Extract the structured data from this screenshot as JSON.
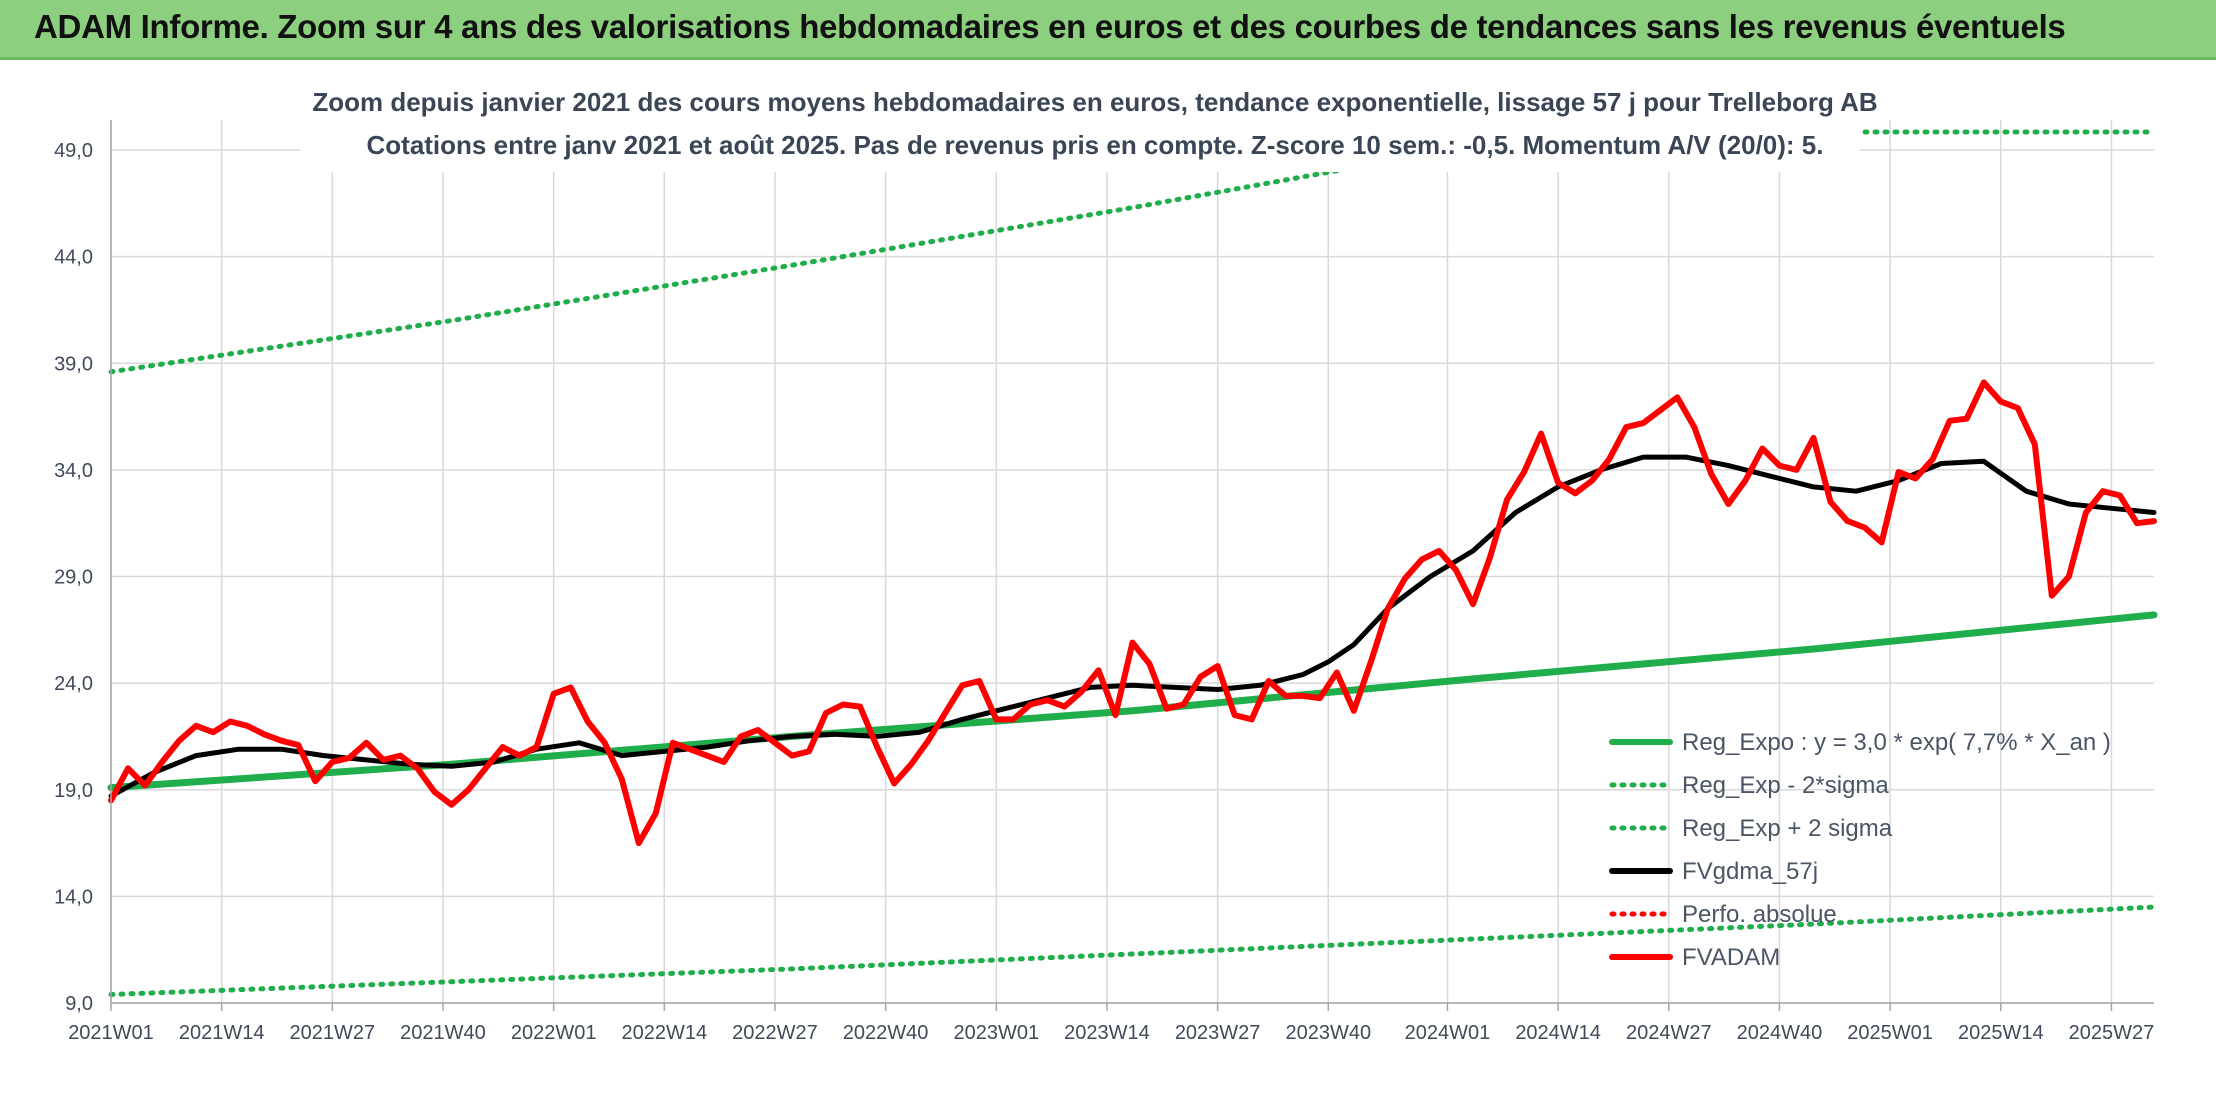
{
  "banner": {
    "title": "ADAM Informe. Zoom sur 4 ans des valorisations hebdomadaires en euros et des courbes de tendances sans les revenus éventuels"
  },
  "colors": {
    "banner_bg": "#8ccf7e",
    "reg_expo": "#1fae4b",
    "sigma_bands": "#1fae4b",
    "fvgdma": "#000000",
    "perfo": "#ff0000",
    "fvadam": "#ff0000",
    "grid": "#d9d9d9",
    "axis_text": "#404a5a"
  },
  "chart_data": {
    "type": "line",
    "title": "Zoom depuis janvier 2021 des cours moyens hebdomadaires en euros, tendance exponentielle, lissage 57 j pour Trelleborg AB",
    "subtitle": "Cotations entre janv 2021 et août 2025. Pas de revenus pris en compte. Z-score 10 sem.: -0,5. Momentum A/V (20/0): 5.",
    "xlabel": "",
    "ylabel": "",
    "ylim": [
      9,
      49
    ],
    "yticks": [
      "9,0",
      "14,0",
      "19,0",
      "24,0",
      "29,0",
      "34,0",
      "39,0",
      "44,0",
      "49,0"
    ],
    "ytick_values": [
      9,
      14,
      19,
      24,
      29,
      34,
      39,
      44,
      49
    ],
    "x_range": [
      0,
      240
    ],
    "xticks": [
      "2021W01",
      "2021W14",
      "2021W27",
      "2021W40",
      "2022W01",
      "2022W14",
      "2022W27",
      "2022W40",
      "2023W01",
      "2023W14",
      "2023W27",
      "2023W40",
      "2024W01",
      "2024W14",
      "2024W27",
      "2024W40",
      "2025W01",
      "2025W14",
      "2025W27"
    ],
    "xtick_positions": [
      0,
      13,
      26,
      39,
      52,
      65,
      78,
      91,
      104,
      117,
      130,
      143,
      157,
      170,
      183,
      196,
      209,
      222,
      235
    ],
    "grid": true,
    "legend_position": "bottom-right",
    "legend": [
      {
        "label": "Reg_Expo : y = 3,0 * exp( 7,7% *  X_an )",
        "style": "solid",
        "color": "#1fae4b"
      },
      {
        "label": "Reg_Exp - 2*sigma",
        "style": "dotted",
        "color": "#1fae4b"
      },
      {
        "label": "Reg_Exp + 2 sigma",
        "style": "dotted",
        "color": "#1fae4b"
      },
      {
        "label": "FVgdma_57j",
        "style": "solid",
        "color": "#000000"
      },
      {
        "label": "Perfo. absolue",
        "style": "dotted",
        "color": "#ff0000"
      },
      {
        "label": "FVADAM",
        "style": "solid",
        "color": "#ff0000"
      }
    ],
    "series": [
      {
        "name": "Reg_Expo : y = 3,0 * exp( 7,7% *  X_an )",
        "x": [
          0,
          40,
          80,
          120,
          160,
          200,
          240
        ],
        "values": [
          19.1,
          20.2,
          21.5,
          22.7,
          24.2,
          25.6,
          27.2
        ]
      },
      {
        "name": "Reg_Exp - 2*sigma",
        "x": [
          0,
          40,
          80,
          120,
          160,
          200,
          240
        ],
        "values": [
          9.4,
          10.0,
          10.6,
          11.3,
          12.0,
          12.7,
          13.5
        ]
      },
      {
        "name": "Reg_Exp + 2 sigma",
        "x": [
          0,
          40,
          80,
          120,
          145
        ],
        "values": [
          38.6,
          41.0,
          43.6,
          46.3,
          48.1
        ]
      },
      {
        "name": "FVgdma_57j",
        "x": [
          0,
          5,
          10,
          15,
          20,
          25,
          30,
          35,
          40,
          45,
          50,
          55,
          60,
          65,
          70,
          75,
          80,
          85,
          90,
          95,
          100,
          105,
          110,
          115,
          120,
          125,
          130,
          135,
          140,
          143,
          146,
          150,
          155,
          160,
          165,
          170,
          175,
          180,
          185,
          190,
          195,
          200,
          205,
          210,
          215,
          220,
          225,
          230,
          235,
          240
        ],
        "values": [
          18.7,
          19.8,
          20.6,
          20.9,
          20.9,
          20.6,
          20.4,
          20.2,
          20.1,
          20.3,
          20.9,
          21.2,
          20.6,
          20.8,
          21.0,
          21.3,
          21.5,
          21.6,
          21.5,
          21.7,
          22.3,
          22.8,
          23.3,
          23.8,
          23.9,
          23.8,
          23.7,
          23.9,
          24.4,
          25.0,
          25.8,
          27.5,
          29.0,
          30.2,
          32.0,
          33.2,
          34.0,
          34.6,
          34.6,
          34.2,
          33.7,
          33.2,
          33.0,
          33.5,
          34.3,
          34.4,
          33.0,
          32.4,
          32.2,
          32.0
        ]
      },
      {
        "name": "FVADAM",
        "x": [
          0,
          2,
          4,
          6,
          8,
          10,
          12,
          14,
          16,
          18,
          20,
          22,
          24,
          26,
          28,
          30,
          32,
          34,
          36,
          38,
          40,
          42,
          44,
          46,
          48,
          50,
          52,
          54,
          56,
          58,
          60,
          62,
          64,
          66,
          68,
          70,
          72,
          74,
          76,
          78,
          80,
          82,
          84,
          86,
          88,
          90,
          92,
          94,
          96,
          98,
          100,
          102,
          104,
          106,
          108,
          110,
          112,
          114,
          116,
          118,
          120,
          122,
          124,
          126,
          128,
          130,
          132,
          134,
          136,
          138,
          140,
          142,
          144,
          146,
          148,
          150,
          152,
          154,
          156,
          158,
          160,
          162,
          164,
          166,
          168,
          170,
          172,
          174,
          176,
          178,
          180,
          182,
          184,
          186,
          188,
          190,
          192,
          194,
          196,
          198,
          200,
          202,
          204,
          206,
          208,
          210,
          212,
          214,
          216,
          218,
          220,
          222,
          224,
          226,
          228,
          230,
          232,
          234,
          236,
          238,
          240
        ],
        "values": [
          18.5,
          20.0,
          19.2,
          20.3,
          21.3,
          22.0,
          21.7,
          22.2,
          22.0,
          21.6,
          21.3,
          21.1,
          19.4,
          20.3,
          20.5,
          21.2,
          20.4,
          20.6,
          20.0,
          18.9,
          18.3,
          19.0,
          20.0,
          21.0,
          20.6,
          21.0,
          23.5,
          23.8,
          22.2,
          21.2,
          19.5,
          16.5,
          17.9,
          21.2,
          20.9,
          20.6,
          20.3,
          21.5,
          21.8,
          21.2,
          20.6,
          20.8,
          22.6,
          23.0,
          22.9,
          21.0,
          19.3,
          20.2,
          21.3,
          22.6,
          23.9,
          24.1,
          22.3,
          22.3,
          23.0,
          23.2,
          22.9,
          23.6,
          24.6,
          22.5,
          25.9,
          24.9,
          22.8,
          23.0,
          24.3,
          24.8,
          22.5,
          22.3,
          24.1,
          23.4,
          23.4,
          23.3,
          24.5,
          22.7,
          25.0,
          27.5,
          28.9,
          29.8,
          30.2,
          29.3,
          27.7,
          29.9,
          32.6,
          33.9,
          35.7,
          33.4,
          32.9,
          33.5,
          34.5,
          36.0,
          36.2,
          36.8,
          37.4,
          36.0,
          33.8,
          32.4,
          33.5,
          35.0,
          34.2,
          34.0,
          35.5,
          32.5,
          31.6,
          31.3,
          30.6,
          33.9,
          33.6,
          34.5,
          36.3,
          36.4,
          38.1,
          37.2,
          36.9,
          35.2,
          28.1,
          29.0,
          32.0,
          33.0,
          32.8,
          31.5,
          31.6
        ]
      }
    ]
  }
}
